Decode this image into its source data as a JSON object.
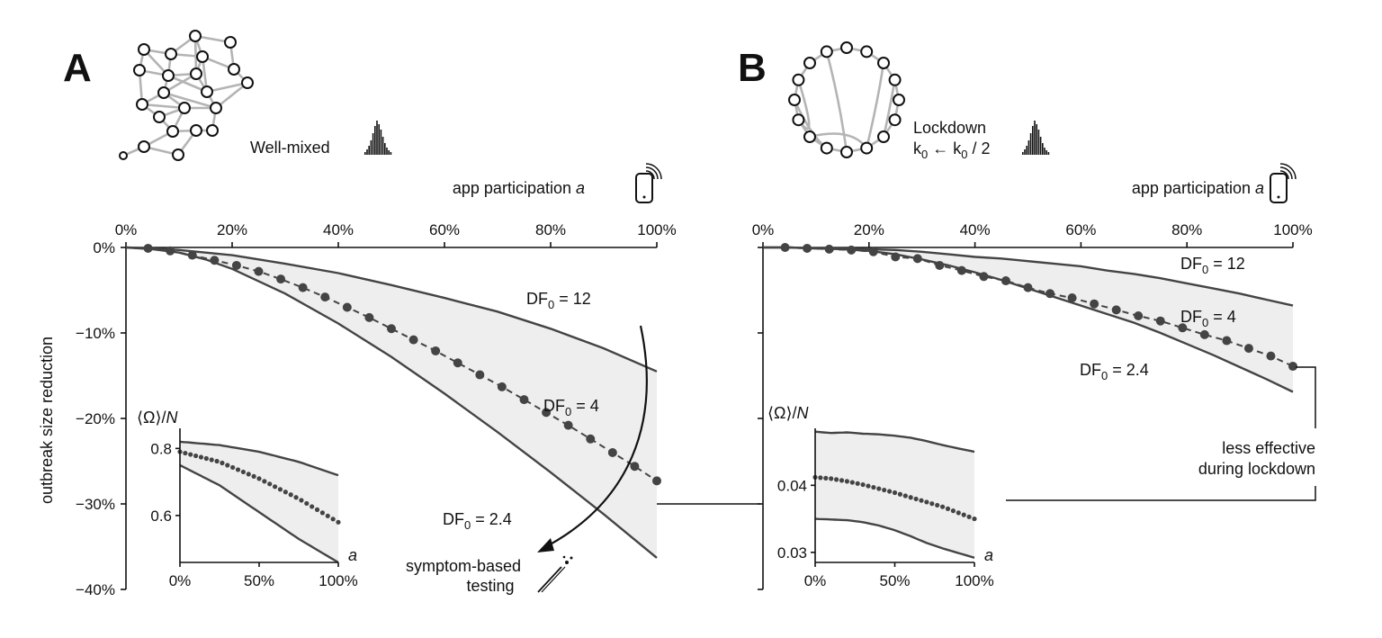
{
  "panels": [
    {
      "letter": "A",
      "network_label": "Well-mixed",
      "top_axis_label": "app participation",
      "top_axis_var": "a",
      "x_ticks": [
        "0%",
        "20%",
        "40%",
        "60%",
        "80%",
        "100%"
      ],
      "y_ticks": [
        "0%",
        "−10%",
        "−20%",
        "−30%",
        "−40%"
      ],
      "ylabel": "outbreak size reduction",
      "series_labels": {
        "upper": "DF",
        "mid": "DF",
        "lower": "DF",
        "sub": "0",
        "upper_val": " = 12",
        "mid_val": " = 4",
        "lower_val": " = 2.4"
      },
      "annotation": {
        "line1": "symptom-based",
        "line2": "testing"
      },
      "inset": {
        "ylabel_main": "⟨Ω⟩/",
        "ylabel_N": "N",
        "y_ticks": [
          "0.8",
          "0.6"
        ],
        "x_ticks": [
          "0%",
          "50%",
          "100%"
        ],
        "xlabel": "a"
      }
    },
    {
      "letter": "B",
      "network_label_1": "Lockdown",
      "network_label_2": "k",
      "network_label_sub": "0",
      "network_label_arrow": " ← k",
      "network_label_tail": " / 2",
      "top_axis_label": "app participation",
      "top_axis_var": "a",
      "x_ticks": [
        "0%",
        "20%",
        "40%",
        "60%",
        "80%",
        "100%"
      ],
      "series_labels": {
        "upper": "DF",
        "mid": "DF",
        "lower": "DF",
        "sub": "0",
        "upper_val": " = 12",
        "mid_val": " = 4",
        "lower_val": " = 2.4"
      },
      "annotation": {
        "line1": "less effective",
        "line2": "during lockdown"
      },
      "inset": {
        "ylabel_main": "⟨Ω⟩/",
        "ylabel_N": "N",
        "y_ticks": [
          "0.04",
          "0.03"
        ],
        "x_ticks": [
          "0%",
          "50%",
          "100%"
        ],
        "xlabel": "a"
      }
    }
  ],
  "chart_data": [
    {
      "type": "line",
      "panel": "A",
      "xlabel": "app participation a",
      "ylabel": "outbreak size reduction",
      "x_unit": "%",
      "y_unit": "%",
      "xlim": [
        0,
        100
      ],
      "ylim": [
        -40,
        0
      ],
      "series": [
        {
          "name": "DF0 = 12",
          "x": [
            0,
            5,
            10,
            15,
            20,
            30,
            40,
            50,
            60,
            70,
            80,
            90,
            100
          ],
          "y": [
            0,
            -0.1,
            -0.3,
            -0.6,
            -0.9,
            -1.9,
            -3.0,
            -4.4,
            -5.9,
            -7.5,
            -9.5,
            -11.8,
            -14.5
          ]
        },
        {
          "name": "DF0 = 4",
          "x": [
            0,
            4.17,
            8.33,
            12.5,
            16.67,
            20.83,
            25,
            29.17,
            33.33,
            37.5,
            41.67,
            45.83,
            50,
            54.17,
            58.33,
            62.5,
            66.67,
            70.83,
            75,
            79.17,
            83.33,
            87.5,
            91.67,
            95.83,
            100
          ],
          "y": [
            0,
            -0.1,
            -0.4,
            -0.9,
            -1.5,
            -2.1,
            -2.8,
            -3.7,
            -4.7,
            -5.8,
            -7.0,
            -8.2,
            -9.5,
            -10.8,
            -12.1,
            -13.5,
            -14.9,
            -16.3,
            -17.8,
            -19.3,
            -20.8,
            -22.4,
            -24.0,
            -25.6,
            -27.3
          ]
        },
        {
          "name": "DF0 = 2.4",
          "x": [
            0,
            5,
            10,
            15,
            20,
            30,
            40,
            50,
            60,
            70,
            80,
            90,
            100
          ],
          "y": [
            0,
            -0.2,
            -0.6,
            -1.4,
            -2.5,
            -5.4,
            -8.9,
            -12.8,
            -17.1,
            -21.6,
            -26.3,
            -31.2,
            -36.3
          ]
        }
      ],
      "annotations": [
        "symptom-based testing"
      ],
      "inset": {
        "ylabel": "⟨Ω⟩/N",
        "xlabel": "a",
        "xlim": [
          0,
          100
        ],
        "ylim": [
          0.46,
          0.86
        ],
        "series": [
          {
            "name": "DF0 = 12",
            "x": [
              0,
              25,
              50,
              75,
              100
            ],
            "y": [
              0.82,
              0.81,
              0.79,
              0.76,
              0.72
            ]
          },
          {
            "name": "DF0 = 4",
            "x": [
              0,
              25,
              50,
              75,
              100
            ],
            "y": [
              0.79,
              0.76,
              0.71,
              0.65,
              0.58
            ]
          },
          {
            "name": "DF0 = 2.4",
            "x": [
              0,
              25,
              50,
              75,
              100
            ],
            "y": [
              0.75,
              0.69,
              0.61,
              0.53,
              0.46
            ]
          }
        ]
      }
    },
    {
      "type": "line",
      "panel": "B",
      "xlabel": "app participation a",
      "x_unit": "%",
      "y_unit": "%",
      "xlim": [
        0,
        100
      ],
      "ylim": [
        -40,
        0
      ],
      "series": [
        {
          "name": "DF0 = 12",
          "x": [
            0,
            5,
            10,
            15,
            20,
            25,
            30,
            35,
            40,
            45,
            50,
            55,
            60,
            65,
            70,
            75,
            80,
            85,
            90,
            95,
            100
          ],
          "y": [
            0,
            0,
            -0.1,
            -0.1,
            -0.2,
            -0.3,
            -0.5,
            -0.8,
            -1.1,
            -1.3,
            -1.6,
            -1.9,
            -2.2,
            -2.7,
            -3.1,
            -3.6,
            -4.2,
            -4.8,
            -5.4,
            -6.1,
            -6.8
          ]
        },
        {
          "name": "DF0 = 4",
          "x": [
            0,
            4.17,
            8.33,
            12.5,
            16.67,
            20.83,
            25,
            29.17,
            33.33,
            37.5,
            41.67,
            45.83,
            50,
            54.17,
            58.33,
            62.5,
            66.67,
            70.83,
            75,
            79.17,
            83.33,
            87.5,
            91.67,
            95.83,
            100
          ],
          "y": [
            0,
            0,
            -0.1,
            -0.2,
            -0.3,
            -0.5,
            -1.1,
            -1.3,
            -2.1,
            -2.7,
            -3.4,
            -3.9,
            -4.7,
            -5.4,
            -5.9,
            -6.6,
            -7.3,
            -8.0,
            -8.6,
            -9.4,
            -10.2,
            -10.9,
            -11.8,
            -12.7,
            -13.9
          ]
        },
        {
          "name": "DF0 = 2.4",
          "x": [
            0,
            5,
            10,
            15,
            20,
            25,
            30,
            35,
            40,
            45,
            50,
            55,
            60,
            65,
            70,
            75,
            80,
            85,
            90,
            95,
            100
          ],
          "y": [
            0,
            0,
            -0.1,
            -0.2,
            -0.4,
            -0.8,
            -1.4,
            -2.1,
            -2.9,
            -3.8,
            -4.8,
            -5.8,
            -6.8,
            -7.8,
            -8.8,
            -10.0,
            -11.3,
            -12.6,
            -14.0,
            -15.4,
            -16.9
          ]
        }
      ],
      "annotations": [
        "less effective during lockdown"
      ],
      "inset": {
        "ylabel": "⟨Ω⟩/N",
        "xlabel": "a",
        "xlim": [
          0,
          100
        ],
        "ylim": [
          0.0285,
          0.0485
        ],
        "series": [
          {
            "name": "DF0 = 12",
            "x": [
              0,
              10,
              20,
              30,
              40,
              50,
              60,
              70,
              80,
              90,
              100
            ],
            "y": [
              0.048,
              0.0478,
              0.0479,
              0.0477,
              0.0476,
              0.0474,
              0.0471,
              0.0466,
              0.046,
              0.0455,
              0.045
            ]
          },
          {
            "name": "DF0 = 4",
            "x": [
              0,
              10,
              20,
              30,
              40,
              50,
              60,
              70,
              80,
              90,
              100
            ],
            "y": [
              0.0412,
              0.041,
              0.0406,
              0.0401,
              0.0395,
              0.0389,
              0.0382,
              0.0375,
              0.0368,
              0.0359,
              0.035
            ]
          },
          {
            "name": "DF0 = 2.4",
            "x": [
              0,
              10,
              20,
              30,
              40,
              50,
              60,
              70,
              80,
              90,
              100
            ],
            "y": [
              0.035,
              0.0349,
              0.0348,
              0.0345,
              0.034,
              0.0333,
              0.0324,
              0.0314,
              0.0306,
              0.0299,
              0.0292
            ]
          }
        ]
      }
    }
  ]
}
